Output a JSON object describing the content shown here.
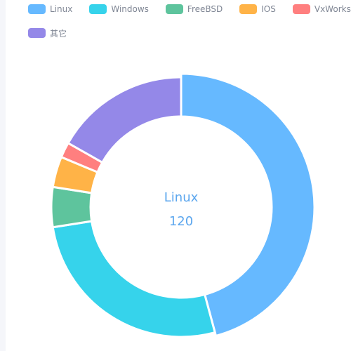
{
  "legend": {
    "items": [
      {
        "label": "Linux",
        "color": "#66b9ff"
      },
      {
        "label": "Windows",
        "color": "#36d3eb"
      },
      {
        "label": "FreeBSD",
        "color": "#5ec49d"
      },
      {
        "label": "IOS",
        "color": "#ffb347"
      },
      {
        "label": "VxWorks",
        "color": "#ff7f7f"
      },
      {
        "label": "其它",
        "color": "#9488e8"
      }
    ]
  },
  "center": {
    "name": "Linux",
    "value": "120"
  },
  "chart_data": {
    "type": "pie",
    "donut": true,
    "legend_position": "top-left",
    "categories": [
      "Linux",
      "Windows",
      "FreeBSD",
      "IOS",
      "VxWorks",
      "其它"
    ],
    "values": [
      120,
      70,
      13,
      10,
      5,
      44
    ],
    "colors": [
      "#66b9ff",
      "#36d3eb",
      "#5ec49d",
      "#ffb347",
      "#ff7f7f",
      "#9488e8"
    ]
  }
}
